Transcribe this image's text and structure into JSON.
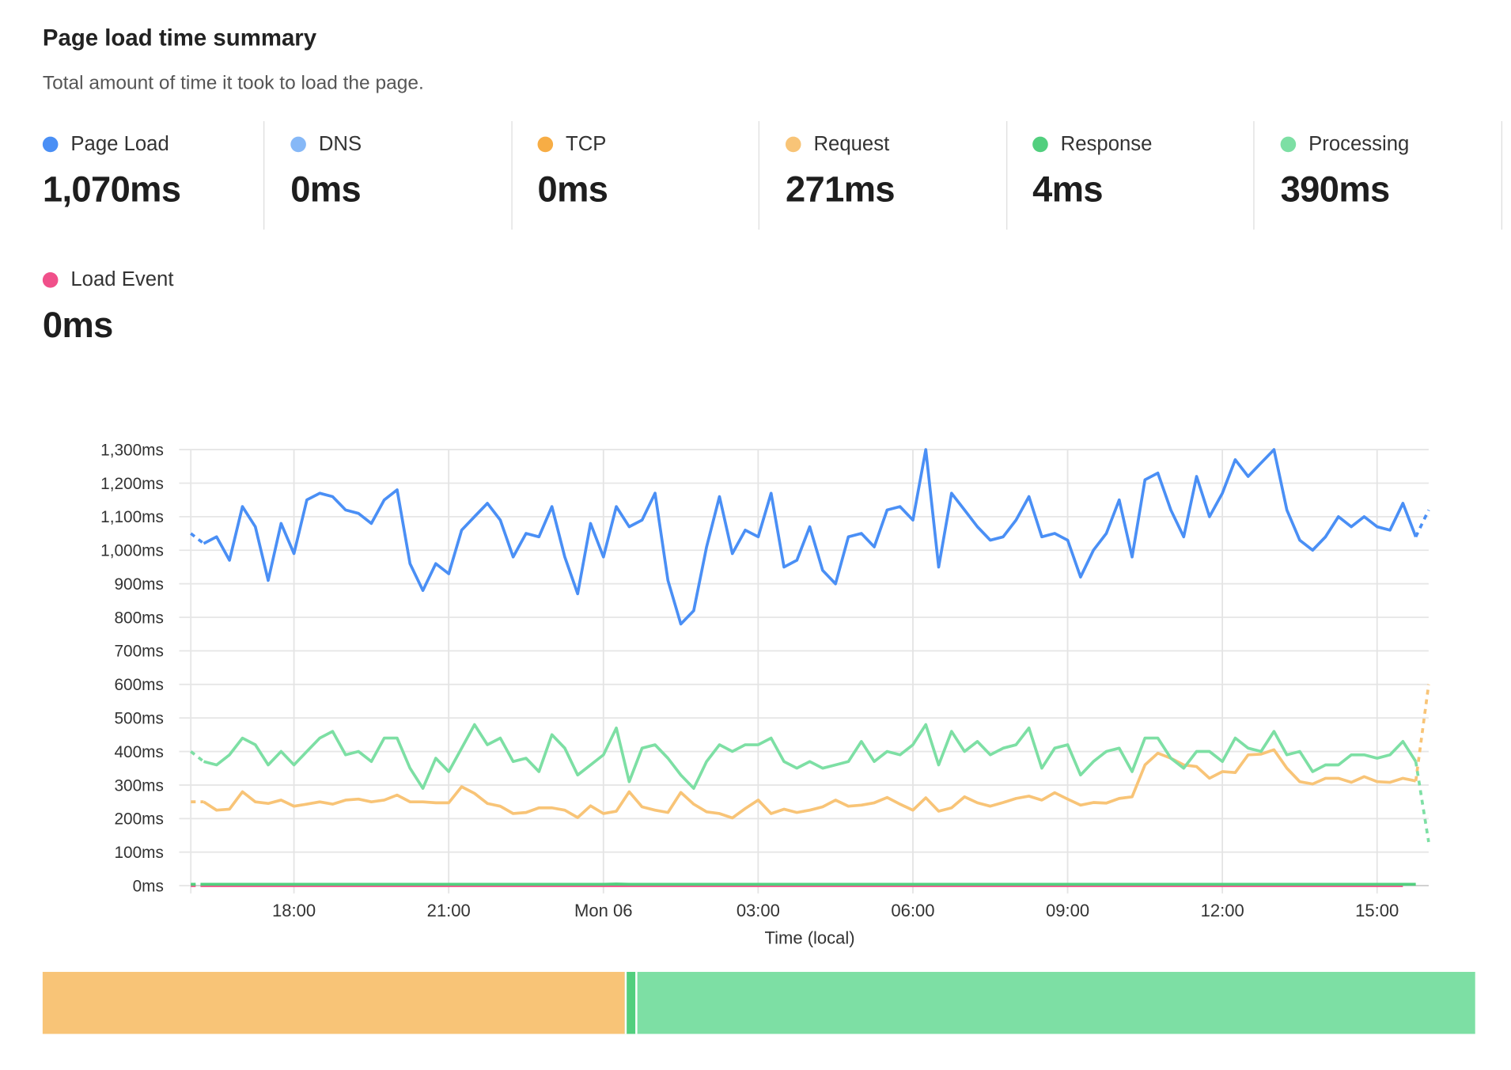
{
  "header": {
    "title": "Page load time summary",
    "subtitle": "Total amount of time it took to load the page."
  },
  "metrics": [
    {
      "label": "Page Load",
      "value": "1,070ms",
      "color": "#4a8ff5"
    },
    {
      "label": "DNS",
      "value": "0ms",
      "color": "#86b8f7"
    },
    {
      "label": "TCP",
      "value": "0ms",
      "color": "#f7ad45"
    },
    {
      "label": "Request",
      "value": "271ms",
      "color": "#f8c477"
    },
    {
      "label": "Response",
      "value": "4ms",
      "color": "#52cf7e"
    },
    {
      "label": "Processing",
      "value": "390ms",
      "color": "#7ddfa4"
    },
    {
      "label": "Load Event",
      "value": "0ms",
      "color": "#f0508a"
    }
  ],
  "chart_data": {
    "type": "line",
    "xlabel": "Time (local)",
    "ylabel": "",
    "ylim": [
      0,
      1300
    ],
    "grid": true,
    "y_ticks": [
      "0ms",
      "100ms",
      "200ms",
      "300ms",
      "400ms",
      "500ms",
      "600ms",
      "700ms",
      "800ms",
      "900ms",
      "1,000ms",
      "1,100ms",
      "1,200ms",
      "1,300ms"
    ],
    "x_ticks": [
      {
        "label": "18:00",
        "at": "18:00"
      },
      {
        "label": "21:00",
        "at": "21:00"
      },
      {
        "label": "Mon 06",
        "at": "00:00"
      },
      {
        "label": "03:00",
        "at": "03:00"
      },
      {
        "label": "06:00",
        "at": "06:00"
      },
      {
        "label": "09:00",
        "at": "09:00"
      },
      {
        "label": "12:00",
        "at": "12:00"
      },
      {
        "label": "15:00",
        "at": "15:00"
      }
    ],
    "x": [
      "16:00",
      "16:15",
      "16:30",
      "16:45",
      "17:00",
      "17:15",
      "17:30",
      "17:45",
      "18:00",
      "18:15",
      "18:30",
      "18:45",
      "19:00",
      "19:15",
      "19:30",
      "19:45",
      "20:00",
      "20:15",
      "20:30",
      "20:45",
      "21:00",
      "21:15",
      "21:30",
      "21:45",
      "22:00",
      "22:15",
      "22:30",
      "22:45",
      "23:00",
      "23:15",
      "23:30",
      "23:45",
      "00:00",
      "00:15",
      "00:30",
      "00:45",
      "01:00",
      "01:15",
      "01:30",
      "01:45",
      "02:00",
      "02:15",
      "02:30",
      "02:45",
      "03:00",
      "03:15",
      "03:30",
      "03:45",
      "04:00",
      "04:15",
      "04:30",
      "04:45",
      "05:00",
      "05:15",
      "05:30",
      "05:45",
      "06:00",
      "06:15",
      "06:30",
      "06:45",
      "07:00",
      "07:15",
      "07:30",
      "07:45",
      "08:00",
      "08:15",
      "08:30",
      "08:45",
      "09:00",
      "09:15",
      "09:30",
      "09:45",
      "10:00",
      "10:15",
      "10:30",
      "10:45",
      "11:00",
      "11:15",
      "11:30",
      "11:45",
      "12:00",
      "12:15",
      "12:30",
      "12:45",
      "13:00",
      "13:15",
      "13:30",
      "13:45",
      "14:00",
      "14:15",
      "14:30",
      "14:45",
      "15:00",
      "15:15",
      "15:30",
      "15:45",
      "16:00"
    ],
    "series": [
      {
        "name": "Page Load",
        "color": "#4a8ff5",
        "values": [
          1050,
          1020,
          1040,
          970,
          1130,
          1070,
          910,
          1080,
          990,
          1150,
          1170,
          1160,
          1120,
          1110,
          1080,
          1150,
          1180,
          960,
          880,
          960,
          930,
          1060,
          1100,
          1140,
          1090,
          980,
          1050,
          1040,
          1130,
          980,
          870,
          1080,
          980,
          1130,
          1070,
          1090,
          1170,
          910,
          780,
          820,
          1010,
          1160,
          990,
          1060,
          1040,
          1170,
          950,
          970,
          1070,
          940,
          900,
          1040,
          1050,
          1010,
          1120,
          1130,
          1090,
          1300,
          950,
          1170,
          1120,
          1070,
          1030,
          1040,
          1090,
          1160,
          1040,
          1050,
          1030,
          920,
          1000,
          1050,
          1150,
          980,
          1210,
          1230,
          1120,
          1040,
          1220,
          1100,
          1170,
          1270,
          1220,
          1260,
          1300,
          1120,
          1030,
          1000,
          1040,
          1100,
          1070,
          1100,
          1070,
          1060,
          1140,
          1040,
          1120
        ]
      },
      {
        "name": "Processing",
        "color": "#7ddfa4",
        "values": [
          400,
          370,
          360,
          390,
          440,
          420,
          360,
          400,
          360,
          400,
          440,
          460,
          390,
          400,
          370,
          440,
          440,
          350,
          290,
          380,
          340,
          410,
          480,
          420,
          440,
          370,
          380,
          340,
          450,
          410,
          330,
          360,
          390,
          470,
          310,
          410,
          420,
          380,
          330,
          290,
          370,
          420,
          400,
          420,
          420,
          440,
          370,
          350,
          370,
          350,
          360,
          370,
          430,
          370,
          400,
          390,
          420,
          480,
          360,
          460,
          400,
          430,
          390,
          410,
          420,
          470,
          350,
          410,
          420,
          330,
          370,
          400,
          410,
          340,
          440,
          440,
          380,
          350,
          400,
          400,
          370,
          440,
          410,
          400,
          460,
          390,
          400,
          340,
          360,
          360,
          390,
          390,
          380,
          390,
          430,
          370,
          130
        ]
      },
      {
        "name": "Request",
        "color": "#f8c477",
        "values": [
          250,
          250,
          225,
          228,
          280,
          250,
          245,
          255,
          237,
          243,
          250,
          243,
          255,
          258,
          250,
          255,
          270,
          250,
          250,
          247,
          247,
          295,
          275,
          245,
          237,
          215,
          218,
          232,
          232,
          225,
          203,
          238,
          215,
          222,
          280,
          235,
          225,
          218,
          278,
          243,
          220,
          215,
          202,
          230,
          255,
          215,
          228,
          218,
          225,
          235,
          255,
          237,
          240,
          247,
          263,
          243,
          225,
          262,
          222,
          232,
          265,
          247,
          237,
          248,
          260,
          267,
          255,
          277,
          258,
          240,
          248,
          246,
          260,
          265,
          360,
          395,
          380,
          360,
          355,
          320,
          340,
          337,
          390,
          392,
          405,
          350,
          310,
          303,
          320,
          320,
          308,
          325,
          310,
          308,
          320,
          312,
          600
        ]
      },
      {
        "name": "Response",
        "color": "#52cf7e",
        "values": [
          4,
          4,
          4,
          4,
          4,
          4,
          4,
          4,
          4,
          4,
          4,
          4,
          4,
          4,
          4,
          4,
          4,
          4,
          4,
          4,
          4,
          4,
          4,
          4,
          4,
          4,
          4,
          4,
          4,
          4,
          4,
          4,
          4,
          5,
          4,
          4,
          4,
          4,
          4,
          4,
          4,
          4,
          4,
          4,
          4,
          4,
          4,
          4,
          4,
          4,
          4,
          4,
          4,
          4,
          4,
          4,
          4,
          4,
          4,
          4,
          4,
          4,
          4,
          4,
          4,
          4,
          4,
          4,
          4,
          4,
          4,
          4,
          4,
          4,
          4,
          4,
          4,
          4,
          4,
          4,
          4,
          4,
          4,
          4,
          4,
          4,
          4,
          4,
          4,
          4,
          4,
          4,
          4,
          4,
          4,
          4,
          4
        ]
      },
      {
        "name": "Load Event",
        "color": "#f0508a",
        "values": [
          0,
          0,
          0,
          0,
          0,
          0,
          0,
          0,
          0,
          0,
          0,
          0,
          0,
          0,
          0,
          0,
          0,
          0,
          0,
          0,
          0,
          0,
          0,
          0,
          0,
          0,
          0,
          0,
          0,
          0,
          0,
          0,
          0,
          0,
          0,
          0,
          0,
          0,
          0,
          0,
          0,
          0,
          0,
          0,
          0,
          0,
          0,
          0,
          0,
          0,
          0,
          0,
          0,
          0,
          0,
          0,
          0,
          0,
          0,
          0,
          0,
          0,
          0,
          0,
          0,
          0,
          0,
          0,
          0,
          0,
          0,
          0,
          0,
          0,
          0,
          0,
          0,
          0,
          0,
          0,
          0,
          0,
          0,
          0,
          0,
          0,
          0,
          0,
          0,
          0,
          0,
          0,
          0,
          0,
          0,
          0,
          0
        ]
      }
    ]
  },
  "breakdown_bar": [
    {
      "name": "Request",
      "value": 271,
      "color": "#f8c477"
    },
    {
      "name": "Response",
      "value": 4,
      "color": "#52cf7e"
    },
    {
      "name": "Processing",
      "value": 390,
      "color": "#7ddfa4"
    }
  ]
}
